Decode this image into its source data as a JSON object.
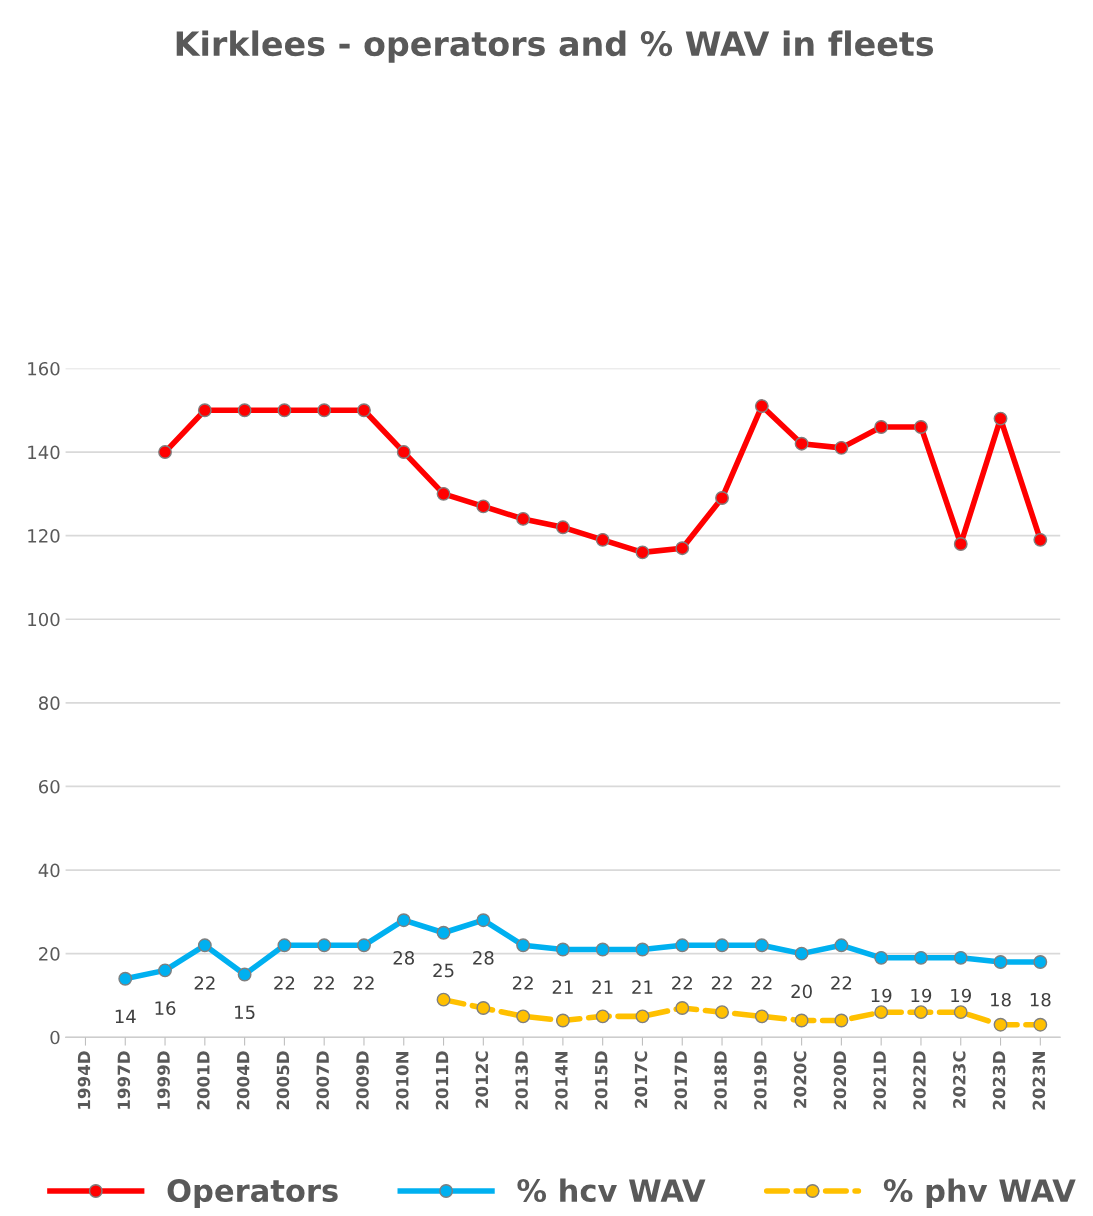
{
  "chart_data": {
    "type": "line",
    "title": "Kirklees - operators and % WAV in fleets",
    "categories": [
      "1994D",
      "1997D",
      "1999D",
      "2001D",
      "2004D",
      "2005D",
      "2007D",
      "2009D",
      "2010N",
      "2011D",
      "2012C",
      "2013D",
      "2014N",
      "2015D",
      "2017C",
      "2017D",
      "2018D",
      "2019D",
      "2020C",
      "2020D",
      "2021D",
      "2022D",
      "2023C",
      "2023D",
      "2023N"
    ],
    "series": [
      {
        "name": "Operators",
        "color": "#ff0000",
        "values": [
          null,
          null,
          140,
          150,
          150,
          150,
          150,
          150,
          140,
          130,
          127,
          124,
          122,
          119,
          116,
          117,
          129,
          151,
          142,
          141,
          146,
          146,
          118,
          148,
          119
        ]
      },
      {
        "name": "% hcv WAV",
        "color": "#00b0f0",
        "values": [
          null,
          14,
          16,
          22,
          15,
          22,
          22,
          22,
          28,
          25,
          28,
          22,
          21,
          21,
          21,
          22,
          22,
          22,
          20,
          22,
          19,
          19,
          19,
          18,
          18
        ],
        "value_labels": [
          null,
          "14",
          "16",
          "22",
          "15",
          "22",
          "22",
          "22",
          "28",
          "25",
          "28",
          "22",
          "21",
          "21",
          "21",
          "22",
          "22",
          "22",
          "20",
          "22",
          "19",
          "19",
          "19",
          "18",
          "18"
        ]
      },
      {
        "name": "% phv WAV",
        "color": "#ffc000",
        "line_style": "dashed",
        "values": [
          null,
          null,
          null,
          null,
          null,
          null,
          null,
          null,
          null,
          9,
          7,
          5,
          4,
          5,
          5,
          7,
          6,
          5,
          4,
          4,
          6,
          6,
          6,
          3,
          3
        ]
      }
    ],
    "ylim": [
      0,
      160
    ],
    "yticks": [
      0,
      20,
      40,
      60,
      80,
      100,
      120,
      140,
      160
    ],
    "grid": "y",
    "legend": "bottom",
    "marker": "circle",
    "line_style": "solid"
  }
}
